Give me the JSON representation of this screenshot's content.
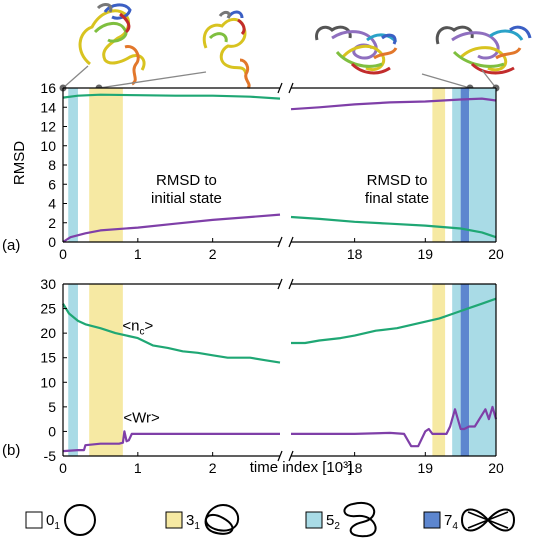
{
  "chart_data": [
    {
      "panel": "(a)",
      "type": "line",
      "ylabel": "RMSD",
      "ylim": [
        0,
        16
      ],
      "yticks": [
        "0",
        "2",
        "4",
        "6",
        "8",
        "10",
        "12",
        "14",
        "16"
      ],
      "x_segments": [
        {
          "xlim": [
            0,
            2.9
          ],
          "ticks": [
            "0",
            "1",
            "2"
          ]
        },
        {
          "xlim": [
            17.1,
            20
          ],
          "ticks": [
            "18",
            "19",
            "20"
          ]
        }
      ],
      "shaded_regions": [
        {
          "knot": "5_2",
          "x": [
            0.07,
            0.2
          ]
        },
        {
          "knot": "3_1",
          "x": [
            0.35,
            0.8
          ]
        },
        {
          "knot": "3_1",
          "x": [
            19.1,
            19.28
          ]
        },
        {
          "knot": "5_2",
          "x": [
            19.38,
            19.5
          ]
        },
        {
          "knot": "7_4",
          "x": [
            19.5,
            19.62
          ]
        },
        {
          "knot": "5_2",
          "x": [
            19.62,
            20.0
          ]
        }
      ],
      "series": [
        {
          "color": "#1fa774",
          "segments": [
            {
              "x": [
                0,
                0.2,
                0.5,
                1.0,
                1.5,
                2.0,
                2.5,
                2.9
              ],
              "y": [
                15.0,
                15.2,
                15.3,
                15.25,
                15.2,
                15.2,
                15.1,
                14.9
              ]
            },
            {
              "x": [
                17.1,
                17.5,
                18.0,
                18.5,
                19.0,
                19.5,
                19.8,
                20.0
              ],
              "y": [
                2.6,
                2.4,
                2.1,
                1.9,
                1.7,
                1.4,
                1.0,
                0.5
              ]
            }
          ]
        },
        {
          "color": "#7f3fa8",
          "segments": [
            {
              "x": [
                0,
                0.1,
                0.3,
                0.5,
                1.0,
                1.5,
                2.0,
                2.5,
                2.9
              ],
              "y": [
                0.0,
                0.5,
                0.9,
                1.2,
                1.5,
                1.9,
                2.3,
                2.6,
                2.85
              ]
            },
            {
              "x": [
                17.1,
                17.5,
                18.0,
                18.5,
                19.0,
                19.5,
                19.8,
                20.0
              ],
              "y": [
                13.8,
                14.0,
                14.3,
                14.5,
                14.6,
                14.8,
                14.9,
                14.7
              ]
            }
          ]
        }
      ],
      "annotations": [
        {
          "lines": [
            "RMSD to",
            "initial state"
          ],
          "x": 1.65,
          "y": 5.9
        },
        {
          "lines": [
            "RMSD to",
            "final state"
          ],
          "x": 18.6,
          "y": 5.9
        }
      ]
    },
    {
      "panel": "(b)",
      "type": "line",
      "xlabel": "time index [10³]",
      "ylim": [
        -5,
        30
      ],
      "yticks": [
        "-5",
        "0",
        "5",
        "10",
        "15",
        "20",
        "25",
        "30"
      ],
      "x_segments": [
        {
          "xlim": [
            0,
            2.9
          ],
          "ticks": [
            "0",
            "1",
            "2"
          ]
        },
        {
          "xlim": [
            17.1,
            20
          ],
          "ticks": [
            "18",
            "19",
            "20"
          ]
        }
      ],
      "series": [
        {
          "label": "<n",
          "label_sub": "c",
          "label_end": ">",
          "color": "#1fa774",
          "segments": [
            {
              "x": [
                0,
                0.08,
                0.2,
                0.3,
                0.5,
                0.7,
                1.0,
                1.2,
                1.4,
                1.6,
                1.8,
                2.0,
                2.2,
                2.5,
                2.7,
                2.9
              ],
              "y": [
                26.0,
                24.0,
                22.5,
                21.8,
                21.0,
                20.0,
                19.0,
                17.5,
                17.0,
                16.3,
                16.0,
                15.5,
                15.0,
                15.0,
                14.5,
                14.0
              ]
            },
            {
              "x": [
                17.1,
                17.3,
                17.5,
                17.8,
                18.0,
                18.3,
                18.6,
                18.9,
                19.2,
                19.4,
                19.6,
                19.8,
                20.0
              ],
              "y": [
                18.0,
                18.0,
                18.5,
                19.0,
                19.5,
                20.5,
                21.0,
                22.0,
                23.0,
                24.0,
                25.0,
                26.0,
                27.0
              ]
            }
          ]
        },
        {
          "label": "<Wr>",
          "color": "#7f3fa8",
          "segments": [
            {
              "x": [
                0,
                0.2,
                0.28,
                0.3,
                0.5,
                0.75,
                0.8,
                0.82,
                0.85,
                0.88,
                0.92,
                1.0,
                1.5,
                2.0,
                2.5,
                2.9
              ],
              "y": [
                -4.0,
                -3.8,
                -3.8,
                -2.8,
                -2.5,
                -2.5,
                -2.3,
                0.0,
                -2.0,
                -1.8,
                -0.5,
                -0.5,
                -0.5,
                -0.5,
                -0.5,
                -0.5
              ]
            },
            {
              "x": [
                17.1,
                17.5,
                18.0,
                18.5,
                18.7,
                18.8,
                18.9,
                19.0,
                19.05,
                19.1,
                19.3,
                19.35,
                19.42,
                19.5,
                19.55,
                19.62,
                19.7,
                19.85,
                19.9,
                19.95,
                20.0
              ],
              "y": [
                -0.5,
                -0.5,
                -0.5,
                -0.3,
                -0.5,
                -3.0,
                -3.0,
                0.0,
                0.5,
                -0.5,
                -0.5,
                1.0,
                4.5,
                0.5,
                0.5,
                1.0,
                1.0,
                4.5,
                2.5,
                5.0,
                2.5
              ]
            }
          ]
        }
      ],
      "shaded_regions": [
        {
          "knot": "5_2",
          "x": [
            0.07,
            0.2
          ]
        },
        {
          "knot": "3_1",
          "x": [
            0.35,
            0.8
          ]
        },
        {
          "knot": "3_1",
          "x": [
            19.1,
            19.28
          ]
        },
        {
          "knot": "5_2",
          "x": [
            19.38,
            19.5
          ]
        },
        {
          "knot": "7_4",
          "x": [
            19.5,
            19.62
          ]
        },
        {
          "knot": "5_2",
          "x": [
            19.62,
            20.0
          ]
        }
      ]
    }
  ],
  "legend": [
    {
      "knot": "0_1",
      "symbol": "0",
      "subscript": "1",
      "color": "#ffffff"
    },
    {
      "knot": "3_1",
      "symbol": "3",
      "subscript": "1",
      "color": "#f6e9a3"
    },
    {
      "knot": "5_2",
      "symbol": "5",
      "subscript": "2",
      "color": "#a9dbe6"
    },
    {
      "knot": "7_4",
      "symbol": "7",
      "subscript": "4",
      "color": "#5d86cf"
    }
  ],
  "region_colors": {
    "3_1": "#f6e9a3",
    "5_2": "#a9dbe6",
    "7_4": "#5d86cf"
  },
  "snapshot_icons": [
    "protein-snapshot-start",
    "protein-snapshot-early",
    "protein-snapshot-late",
    "protein-snapshot-end"
  ]
}
